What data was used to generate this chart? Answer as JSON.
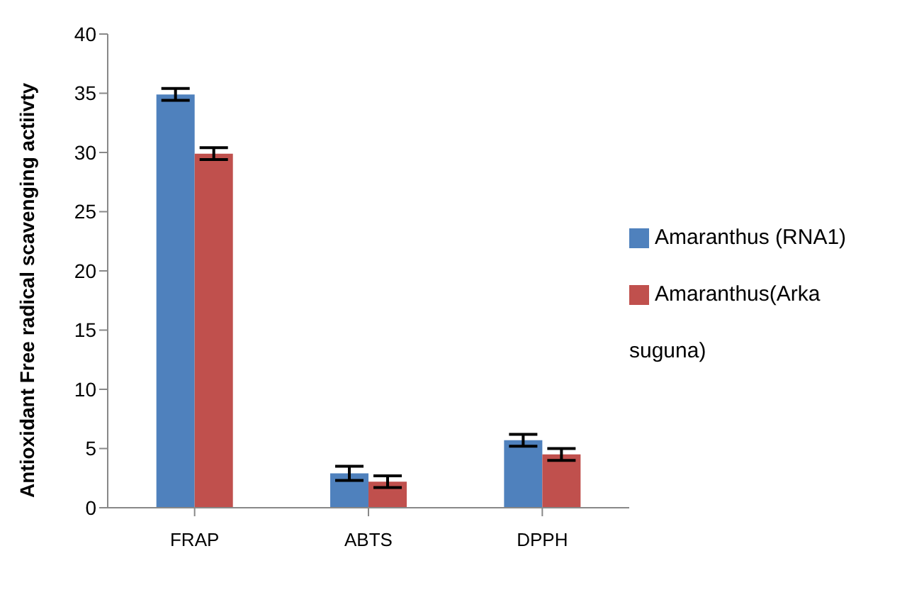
{
  "chart_data": {
    "type": "bar",
    "ylabel": "Antioxidant Free radical scavenging actiivty",
    "categories": [
      "FRAP",
      "ABTS",
      "DPPH"
    ],
    "series": [
      {
        "name": "Amaranthus (RNA1)",
        "color": "#4f81bd",
        "values": [
          34.9,
          2.9,
          5.7
        ],
        "errors": [
          0.5,
          0.6,
          0.5
        ]
      },
      {
        "name": "Amaranthus(Arka suguna)",
        "color": "#c0504d",
        "values": [
          29.9,
          2.2,
          4.5
        ],
        "errors": [
          0.5,
          0.5,
          0.5
        ]
      }
    ],
    "ylim": [
      0,
      40
    ],
    "yticks": [
      0,
      5,
      10,
      15,
      20,
      25,
      30,
      35,
      40
    ],
    "grid": false,
    "legend": "right"
  }
}
